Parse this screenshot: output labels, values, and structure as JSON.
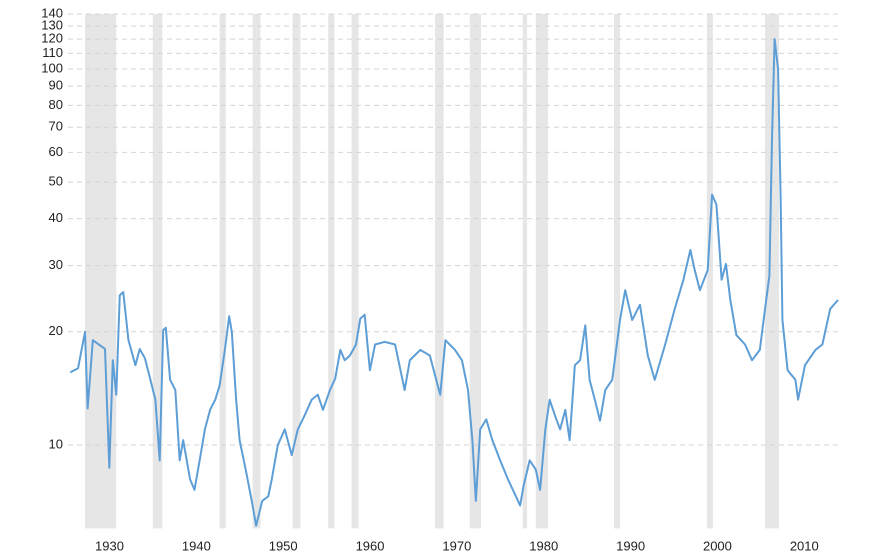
{
  "chart_data": {
    "type": "line",
    "x": [
      1927.9,
      1928.8,
      1929.6,
      1929.9,
      1930.5,
      1931.9,
      1932.4,
      1932.8,
      1933.2,
      1933.6,
      1934.0,
      1934.6,
      1935.4,
      1935.9,
      1936.5,
      1937.1,
      1937.7,
      1938.2,
      1938.6,
      1938.9,
      1939.4,
      1940.0,
      1940.5,
      1940.9,
      1941.7,
      1942.2,
      1942.8,
      1943.4,
      1944.0,
      1944.6,
      1945.1,
      1945.7,
      1946.2,
      1946.5,
      1947.0,
      1947.4,
      1948.1,
      1948.8,
      1949.3,
      1950.0,
      1950.7,
      1951.1,
      1951.8,
      1952.6,
      1953.4,
      1954.1,
      1954.9,
      1955.7,
      1956.4,
      1957.0,
      1957.8,
      1958.4,
      1959.0,
      1959.5,
      1960.1,
      1960.8,
      1961.3,
      1961.8,
      1962.4,
      1963.0,
      1964.1,
      1965.3,
      1966.4,
      1967.0,
      1968.2,
      1969.3,
      1970.5,
      1971.1,
      1972.2,
      1973.0,
      1973.7,
      1974.2,
      1974.6,
      1975.1,
      1975.8,
      1976.5,
      1977.4,
      1978.3,
      1979.1,
      1979.7,
      1980.1,
      1980.8,
      1981.5,
      1982.0,
      1982.6,
      1983.1,
      1983.7,
      1984.3,
      1984.9,
      1985.4,
      1986.0,
      1986.6,
      1987.2,
      1987.7,
      1988.3,
      1988.9,
      1989.5,
      1990.3,
      1991.2,
      1991.8,
      1992.6,
      1993.5,
      1994.4,
      1995.2,
      1996.4,
      1997.5,
      1998.5,
      1999.3,
      1999.8,
      2000.4,
      2001.3,
      2001.8,
      2002.3,
      2002.9,
      2003.4,
      2003.9,
      2004.6,
      2005.6,
      2006.4,
      2007.3,
      2007.9,
      2008.4,
      2008.7,
      2009.0,
      2009.4,
      2009.7,
      2009.9,
      2010.5,
      2011.4,
      2011.7,
      2012.5,
      2013.7,
      2014.5,
      2015.4,
      2016.3
    ],
    "values": [
      15.6,
      16.0,
      20.0,
      12.5,
      19.0,
      18.0,
      8.7,
      16.8,
      13.6,
      25.0,
      25.5,
      19.0,
      16.3,
      18.0,
      17.0,
      15.0,
      13.2,
      9.1,
      20.2,
      20.5,
      14.9,
      14.0,
      9.1,
      10.3,
      8.1,
      7.6,
      9.1,
      11.0,
      12.4,
      13.2,
      14.4,
      17.9,
      22.0,
      20.0,
      13.2,
      10.3,
      8.6,
      7.1,
      6.1,
      7.1,
      7.3,
      8.1,
      10.0,
      11.0,
      9.4,
      11.0,
      12.0,
      13.2,
      13.6,
      12.4,
      14.0,
      15.0,
      17.9,
      16.8,
      17.3,
      18.5,
      21.7,
      22.2,
      15.8,
      18.5,
      18.8,
      18.5,
      14.0,
      16.8,
      17.9,
      17.3,
      13.6,
      19.0,
      17.9,
      16.8,
      14.0,
      10.3,
      7.1,
      11.0,
      11.7,
      10.3,
      9.1,
      8.1,
      7.4,
      6.9,
      7.8,
      9.1,
      8.6,
      7.6,
      11.0,
      13.2,
      12.0,
      11.0,
      12.4,
      10.3,
      16.3,
      16.8,
      20.8,
      14.9,
      13.2,
      11.6,
      14.0,
      14.9,
      21.5,
      25.8,
      21.5,
      23.6,
      17.3,
      14.9,
      18.5,
      23.0,
      27.5,
      33.0,
      29.2,
      25.8,
      29.2,
      46.3,
      43.6,
      27.5,
      30.3,
      24.3,
      19.6,
      18.5,
      16.8,
      17.9,
      23.0,
      28.2,
      65.0,
      120.0,
      100.0,
      44.8,
      21.5,
      15.8,
      14.9,
      13.2,
      16.3,
      17.9,
      18.5,
      23.0,
      24.3
    ],
    "color": "#5e9ed6",
    "recessions": [
      [
        1929.6,
        1933.2
      ],
      [
        1937.4,
        1938.5
      ],
      [
        1945.1,
        1945.8
      ],
      [
        1948.9,
        1949.8
      ],
      [
        1953.5,
        1954.4
      ],
      [
        1957.6,
        1958.3
      ],
      [
        1960.3,
        1961.1
      ],
      [
        1969.9,
        1970.9
      ],
      [
        1973.9,
        1975.2
      ],
      [
        1980.0,
        1980.5
      ],
      [
        1981.5,
        1982.9
      ],
      [
        1990.5,
        1991.2
      ],
      [
        2001.2,
        2001.9
      ],
      [
        2007.9,
        2009.5
      ]
    ],
    "recession_color": "#e6e6e6",
    "xlim": [
      1927.64,
      2016.3
    ],
    "xticks": [
      1930,
      1940,
      1950,
      1960,
      1970,
      1980,
      1990,
      2000,
      2010
    ],
    "ylim": [
      6,
      140
    ],
    "yticks": [
      10,
      20,
      30,
      40,
      50,
      60,
      70,
      80,
      90,
      100,
      110,
      120,
      130,
      140
    ],
    "log_scale": true,
    "grid": true
  }
}
